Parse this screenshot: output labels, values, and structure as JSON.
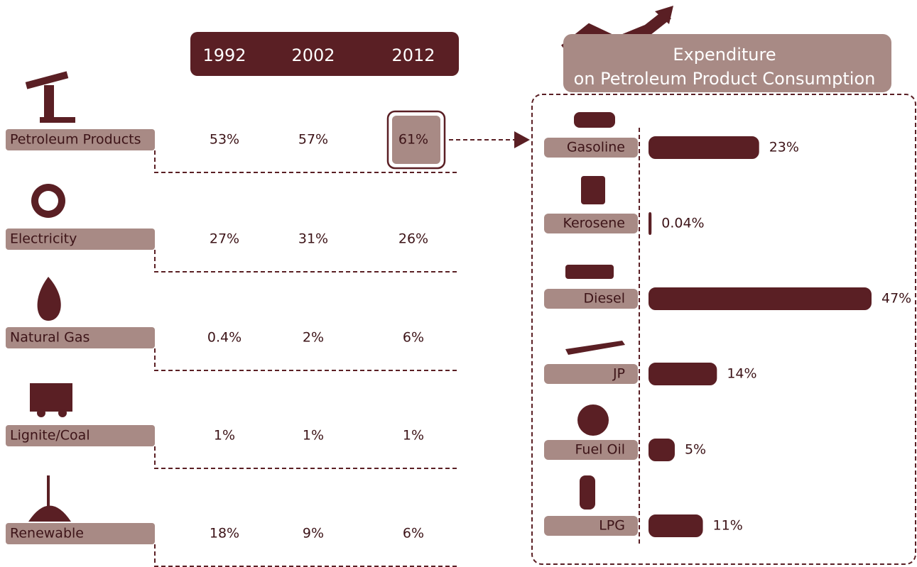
{
  "table": {
    "headers": [
      "1992",
      "2002",
      "2012"
    ],
    "rows": [
      {
        "label": "Petroleum Products",
        "cells": [
          "53%",
          "57%",
          "61%"
        ]
      },
      {
        "label": "Electricity",
        "cells": [
          "27%",
          "31%",
          "26%"
        ]
      },
      {
        "label": "Natural Gas",
        "cells": [
          "0.4%",
          "2%",
          "6%"
        ]
      },
      {
        "label": "Lignite/Coal",
        "cells": [
          "1%",
          "1%",
          "1%"
        ]
      },
      {
        "label": "Renewable",
        "cells": [
          "18%",
          "9%",
          "6%"
        ]
      }
    ]
  },
  "chart_data": {
    "type": "bar",
    "title": "Expenditure\non Petroleum Product Consumption",
    "categories": [
      "Gasoline",
      "Kerosene",
      "Diesel",
      "JP",
      "Fuel Oil",
      "LPG"
    ],
    "values": [
      23,
      0.04,
      47,
      14,
      5,
      11
    ],
    "value_labels": [
      "23%",
      "0.04%",
      "47%",
      "14%",
      "5%",
      "11%"
    ],
    "color": "#5a1f24"
  }
}
